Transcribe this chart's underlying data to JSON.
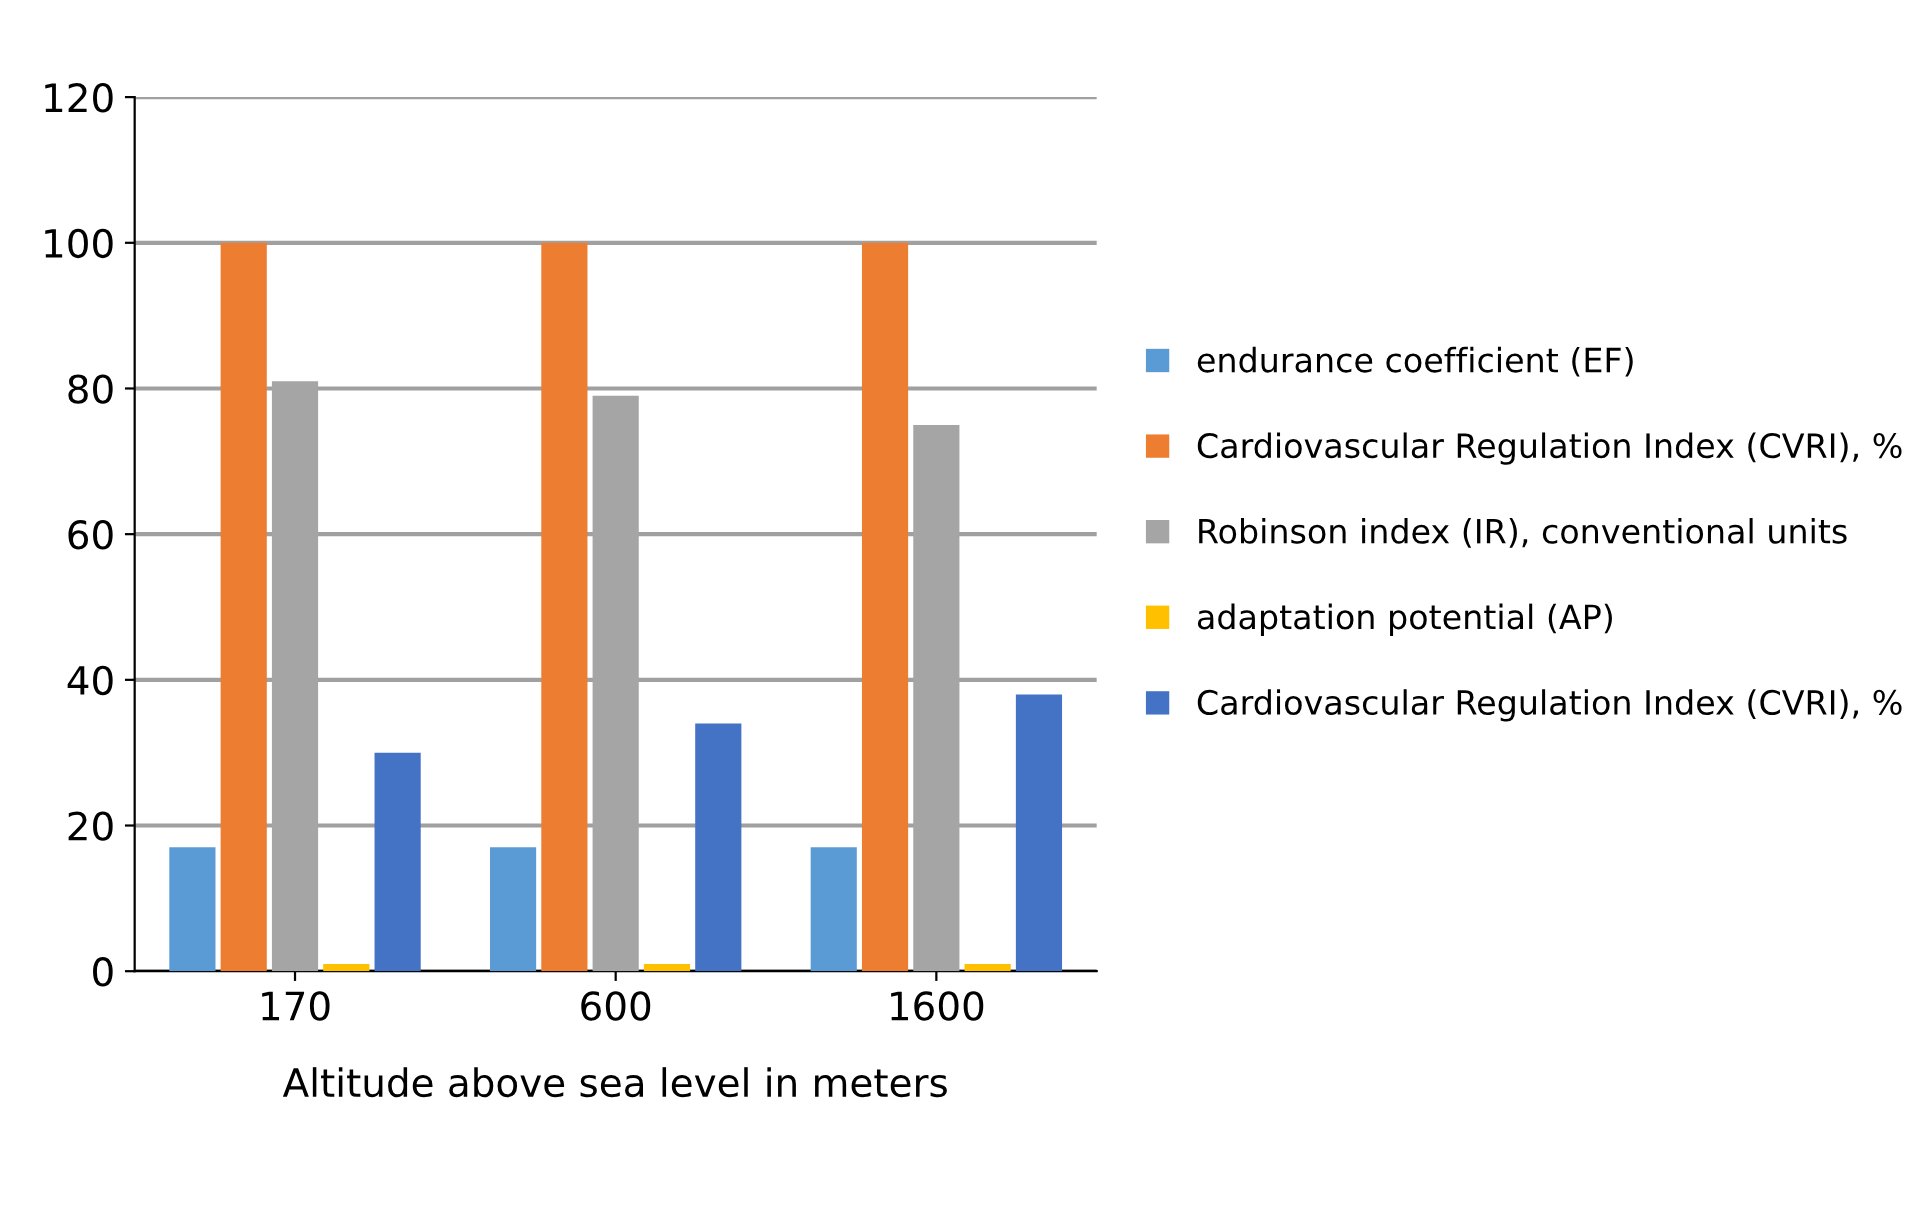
{
  "chart_data": {
    "type": "bar",
    "xlabel": "Altitude above sea level in meters",
    "categories": [
      "170",
      "600",
      "1600"
    ],
    "series": [
      {
        "name": "endurance coefficient (EF)",
        "color": "#5b9bd5",
        "values": [
          17,
          17,
          17
        ]
      },
      {
        "name": "Cardiovascular Regulation Index (CVRI), %",
        "color": "#ed7d31",
        "values": [
          100,
          100,
          100
        ]
      },
      {
        "name": "Robinson index (IR), conventional units",
        "color": "#a5a5a5",
        "values": [
          81,
          79,
          75
        ]
      },
      {
        "name": "adaptation potential (AP)",
        "color": "#ffc000",
        "values": [
          1,
          1,
          1
        ]
      },
      {
        "name": "Cardiovascular Regulation Index (CVRI), %",
        "color": "#4472c4",
        "values": [
          30,
          34,
          38
        ]
      }
    ],
    "ylim": [
      0,
      120
    ],
    "yticks": [
      0,
      20,
      40,
      60,
      80,
      100,
      120
    ],
    "grid": "y",
    "legend": "right"
  }
}
